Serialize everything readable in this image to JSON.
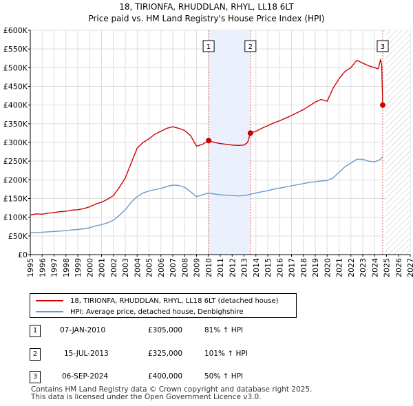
{
  "chart_data": {
    "type": "line",
    "title": "18, TIRIONFA, RHUDDLAN, RHYL, LL18 6LT",
    "subtitle": "Price paid vs. HM Land Registry's House Price Index (HPI)",
    "xlabel": "",
    "ylabel": "",
    "xlim": [
      1995,
      2027
    ],
    "ylim": [
      0,
      600000
    ],
    "x_ticks": [
      "1995",
      "1996",
      "1997",
      "1998",
      "1999",
      "2000",
      "2001",
      "2002",
      "2003",
      "2004",
      "2005",
      "2006",
      "2007",
      "2008",
      "2009",
      "2010",
      "2011",
      "2012",
      "2013",
      "2014",
      "2015",
      "2016",
      "2017",
      "2018",
      "2019",
      "2020",
      "2021",
      "2022",
      "2023",
      "2024",
      "2025",
      "2026",
      "2027"
    ],
    "y_ticks": [
      {
        "value": 0,
        "label": "£0"
      },
      {
        "value": 50000,
        "label": "£50K"
      },
      {
        "value": 100000,
        "label": "£100K"
      },
      {
        "value": 150000,
        "label": "£150K"
      },
      {
        "value": 200000,
        "label": "£200K"
      },
      {
        "value": 250000,
        "label": "£250K"
      },
      {
        "value": 300000,
        "label": "£300K"
      },
      {
        "value": 350000,
        "label": "£350K"
      },
      {
        "value": 400000,
        "label": "£400K"
      },
      {
        "value": 450000,
        "label": "£450K"
      },
      {
        "value": 500000,
        "label": "£500K"
      },
      {
        "value": 550000,
        "label": "£550K"
      },
      {
        "value": 600000,
        "label": "£600K"
      }
    ],
    "grid": true,
    "legend_position": "bottom-left",
    "series": [
      {
        "name": "18, TIRIONFA, RHUDDLAN, RHYL, LL18 6LT (detached house)",
        "color": "#cc0000",
        "x": [
          1995.0,
          1995.5,
          1996.0,
          1996.5,
          1997.0,
          1997.5,
          1998.0,
          1998.5,
          1999.0,
          1999.5,
          2000.0,
          2000.5,
          2001.0,
          2001.5,
          2002.0,
          2002.5,
          2003.0,
          2003.5,
          2004.0,
          2004.5,
          2005.0,
          2005.5,
          2006.0,
          2006.5,
          2007.0,
          2007.5,
          2008.0,
          2008.5,
          2009.0,
          2009.5,
          2010.02,
          2010.5,
          2011.0,
          2011.5,
          2012.0,
          2012.5,
          2013.0,
          2013.3,
          2013.54,
          2014.0,
          2014.5,
          2015.0,
          2015.5,
          2016.0,
          2016.5,
          2017.0,
          2017.5,
          2018.0,
          2018.5,
          2019.0,
          2019.5,
          2020.0,
          2020.5,
          2021.0,
          2021.5,
          2022.0,
          2022.5,
          2023.0,
          2023.5,
          2024.0,
          2024.3,
          2024.5,
          2024.6,
          2024.68
        ],
        "values": [
          106000,
          109000,
          108000,
          111000,
          112000,
          115000,
          116000,
          119000,
          120000,
          123000,
          128000,
          135000,
          140000,
          148000,
          158000,
          180000,
          205000,
          245000,
          285000,
          300000,
          310000,
          322000,
          330000,
          338000,
          342000,
          338000,
          332000,
          318000,
          290000,
          295000,
          305000,
          300000,
          297000,
          295000,
          293000,
          292000,
          293000,
          300000,
          325000,
          330000,
          338000,
          345000,
          352000,
          358000,
          365000,
          372000,
          380000,
          388000,
          398000,
          408000,
          415000,
          410000,
          445000,
          470000,
          490000,
          500000,
          520000,
          512000,
          505000,
          500000,
          497000,
          522000,
          505000,
          400000
        ]
      },
      {
        "name": "HPI: Average price, detached house, Denbighshire",
        "color": "#6699cc",
        "x": [
          1995.0,
          1995.5,
          1996.0,
          1996.5,
          1997.0,
          1997.5,
          1998.0,
          1998.5,
          1999.0,
          1999.5,
          2000.0,
          2000.5,
          2001.0,
          2001.5,
          2002.0,
          2002.5,
          2003.0,
          2003.5,
          2004.0,
          2004.5,
          2005.0,
          2005.5,
          2006.0,
          2006.5,
          2007.0,
          2007.5,
          2008.0,
          2008.5,
          2009.0,
          2009.5,
          2010.0,
          2010.5,
          2011.0,
          2011.5,
          2012.0,
          2012.5,
          2013.0,
          2013.5,
          2014.0,
          2014.5,
          2015.0,
          2015.5,
          2016.0,
          2016.5,
          2017.0,
          2017.5,
          2018.0,
          2018.5,
          2019.0,
          2019.5,
          2020.0,
          2020.5,
          2021.0,
          2021.5,
          2022.0,
          2022.5,
          2023.0,
          2023.5,
          2024.0,
          2024.5,
          2024.68
        ],
        "values": [
          58000,
          59000,
          60000,
          61000,
          62000,
          63000,
          64000,
          66000,
          67000,
          69000,
          72000,
          77000,
          80000,
          85000,
          92000,
          105000,
          120000,
          140000,
          155000,
          165000,
          170000,
          174000,
          177000,
          182000,
          186000,
          185000,
          180000,
          168000,
          155000,
          160000,
          165000,
          162000,
          160000,
          159000,
          158000,
          157000,
          158000,
          161000,
          165000,
          168000,
          171000,
          175000,
          178000,
          181000,
          184000,
          187000,
          190000,
          193000,
          195000,
          197000,
          198000,
          205000,
          220000,
          235000,
          245000,
          255000,
          255000,
          250000,
          248000,
          255000,
          262000
        ]
      }
    ],
    "sale_markers": [
      {
        "id": "1",
        "x": 2010.02,
        "value": 305000
      },
      {
        "id": "2",
        "x": 2013.54,
        "value": 325000
      },
      {
        "id": "3",
        "x": 2024.68,
        "value": 400000
      }
    ],
    "shaded_region": {
      "x_start": 2010.02,
      "x_end": 2013.54
    },
    "hatched_region": {
      "x_start": 2024.9,
      "x_end": 2027
    }
  },
  "legend": {
    "property_label": "18, TIRIONFA, RHUDDLAN, RHYL, LL18 6LT (detached house)",
    "hpi_label": "HPI: Average price, detached house, Denbighshire",
    "property_color": "#cc0000",
    "hpi_color": "#6699cc"
  },
  "sales": [
    {
      "num": "1",
      "date": "07-JAN-2010",
      "price": "£305,000",
      "hpi": "81% ↑ HPI"
    },
    {
      "num": "2",
      "date": "15-JUL-2013",
      "price": "£325,000",
      "hpi": "101% ↑ HPI"
    },
    {
      "num": "3",
      "date": "06-SEP-2024",
      "price": "£400,000",
      "hpi": "50% ↑ HPI"
    }
  ],
  "footer": {
    "line1": "Contains HM Land Registry data © Crown copyright and database right 2025.",
    "line2": "This data is licensed under the Open Government Licence v3.0."
  }
}
